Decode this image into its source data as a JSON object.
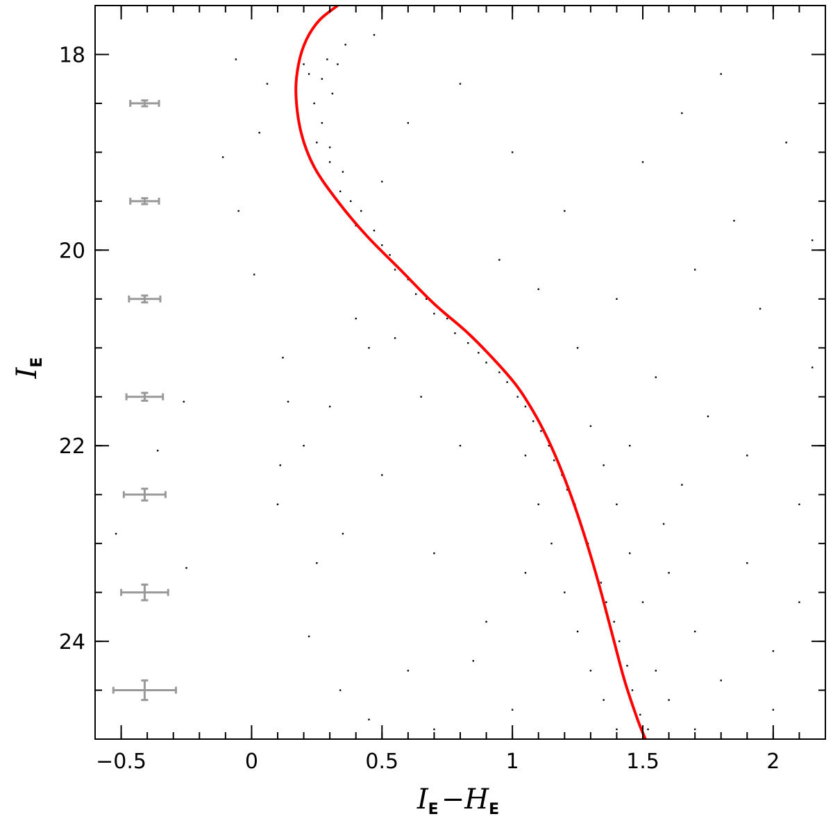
{
  "chart_data": {
    "type": "scatter",
    "title": "",
    "xlabel": {
      "main": "I",
      "sub1": "E",
      "dash": "−",
      "main2": "H",
      "sub2": "E"
    },
    "ylabel": {
      "main": "I",
      "sub": "E"
    },
    "xlim": [
      -0.6,
      2.2
    ],
    "ylim": [
      25.0,
      17.5
    ],
    "y_inverted": true,
    "x_ticks": [
      {
        "value": -0.5,
        "label": "−0.5"
      },
      {
        "value": 0,
        "label": "0"
      },
      {
        "value": 0.5,
        "label": "0.5"
      },
      {
        "value": 1,
        "label": "1"
      },
      {
        "value": 1.5,
        "label": "1.5"
      },
      {
        "value": 2,
        "label": "2"
      }
    ],
    "y_ticks": [
      {
        "value": 18,
        "label": "18"
      },
      {
        "value": 20,
        "label": "20"
      },
      {
        "value": 22,
        "label": "22"
      },
      {
        "value": 24,
        "label": "24"
      }
    ],
    "grid": false,
    "legend": "none",
    "colors": {
      "points": "#000000",
      "fiducial_line": "#ff0000",
      "error_bars": "#999999"
    },
    "fiducial_line": {
      "name": "",
      "points": [
        [
          0.33,
          17.5
        ],
        [
          0.26,
          17.65
        ],
        [
          0.21,
          17.85
        ],
        [
          0.18,
          18.1
        ],
        [
          0.17,
          18.4
        ],
        [
          0.19,
          18.8
        ],
        [
          0.24,
          19.15
        ],
        [
          0.33,
          19.5
        ],
        [
          0.44,
          19.85
        ],
        [
          0.57,
          20.2
        ],
        [
          0.7,
          20.55
        ],
        [
          0.83,
          20.85
        ],
        [
          0.94,
          21.15
        ],
        [
          1.02,
          21.4
        ],
        [
          1.08,
          21.65
        ],
        [
          1.13,
          21.9
        ],
        [
          1.18,
          22.2
        ],
        [
          1.23,
          22.55
        ],
        [
          1.28,
          22.95
        ],
        [
          1.33,
          23.4
        ],
        [
          1.38,
          23.9
        ],
        [
          1.43,
          24.4
        ],
        [
          1.48,
          24.8
        ],
        [
          1.51,
          25.0
        ]
      ]
    },
    "error_bars": [
      {
        "x": -0.41,
        "y": 18.5,
        "xerr": 0.055,
        "yerr": 0.03
      },
      {
        "x": -0.41,
        "y": 19.5,
        "xerr": 0.055,
        "yerr": 0.03
      },
      {
        "x": -0.41,
        "y": 20.5,
        "xerr": 0.06,
        "yerr": 0.035
      },
      {
        "x": -0.41,
        "y": 21.5,
        "xerr": 0.07,
        "yerr": 0.04
      },
      {
        "x": -0.41,
        "y": 22.5,
        "xerr": 0.08,
        "yerr": 0.06
      },
      {
        "x": -0.41,
        "y": 23.5,
        "xerr": 0.09,
        "yerr": 0.08
      },
      {
        "x": -0.41,
        "y": 24.5,
        "xerr": 0.12,
        "yerr": 0.1
      }
    ],
    "points": [
      [
        0.06,
        18.3
      ],
      [
        -0.06,
        18.05
      ],
      [
        0.03,
        18.8
      ],
      [
        -0.11,
        19.05
      ],
      [
        -0.05,
        19.6
      ],
      [
        0.01,
        20.25
      ],
      [
        0.12,
        21.1
      ],
      [
        0.14,
        21.55
      ],
      [
        0.11,
        22.2
      ],
      [
        0.1,
        22.6
      ],
      [
        -0.26,
        21.55
      ],
      [
        -0.36,
        22.05
      ],
      [
        -0.25,
        23.25
      ],
      [
        -0.52,
        22.9
      ],
      [
        0.22,
        23.95
      ],
      [
        0.34,
        24.5
      ],
      [
        0.29,
        18.05
      ],
      [
        0.33,
        18.1
      ],
      [
        0.36,
        17.9
      ],
      [
        0.47,
        17.8
      ],
      [
        0.27,
        18.25
      ],
      [
        0.31,
        18.4
      ],
      [
        0.22,
        18.2
      ],
      [
        0.2,
        18.1
      ],
      [
        0.24,
        18.5
      ],
      [
        0.27,
        18.7
      ],
      [
        0.25,
        18.9
      ],
      [
        0.3,
        18.95
      ],
      [
        0.3,
        19.1
      ],
      [
        0.35,
        19.2
      ],
      [
        0.34,
        19.4
      ],
      [
        0.38,
        19.5
      ],
      [
        0.42,
        19.6
      ],
      [
        0.4,
        19.75
      ],
      [
        0.47,
        19.8
      ],
      [
        0.5,
        19.95
      ],
      [
        0.53,
        20.05
      ],
      [
        0.55,
        20.2
      ],
      [
        0.6,
        20.3
      ],
      [
        0.63,
        20.45
      ],
      [
        0.67,
        20.5
      ],
      [
        0.7,
        20.65
      ],
      [
        0.75,
        20.7
      ],
      [
        0.78,
        20.85
      ],
      [
        0.83,
        20.95
      ],
      [
        0.87,
        21.05
      ],
      [
        0.9,
        21.15
      ],
      [
        0.95,
        21.25
      ],
      [
        0.98,
        21.35
      ],
      [
        1.02,
        21.5
      ],
      [
        1.05,
        21.6
      ],
      [
        1.08,
        21.75
      ],
      [
        1.11,
        21.85
      ],
      [
        1.14,
        22.0
      ],
      [
        1.16,
        22.15
      ],
      [
        1.19,
        22.3
      ],
      [
        1.21,
        22.45
      ],
      [
        1.24,
        22.6
      ],
      [
        1.26,
        22.8
      ],
      [
        1.29,
        23.0
      ],
      [
        1.31,
        23.2
      ],
      [
        1.34,
        23.4
      ],
      [
        1.36,
        23.6
      ],
      [
        1.39,
        23.8
      ],
      [
        1.41,
        24.0
      ],
      [
        1.44,
        24.25
      ],
      [
        1.46,
        24.5
      ],
      [
        1.49,
        24.75
      ],
      [
        1.52,
        24.9
      ],
      [
        1.2,
        23.5
      ],
      [
        1.25,
        23.9
      ],
      [
        1.3,
        24.3
      ],
      [
        1.35,
        24.6
      ],
      [
        1.55,
        24.3
      ],
      [
        1.6,
        24.6
      ],
      [
        1.5,
        23.6
      ],
      [
        1.45,
        23.1
      ],
      [
        1.4,
        22.6
      ],
      [
        1.35,
        22.2
      ],
      [
        1.3,
        21.8
      ],
      [
        1.1,
        22.6
      ],
      [
        1.15,
        23.0
      ],
      [
        1.05,
        22.1
      ],
      [
        1.6,
        23.3
      ],
      [
        1.7,
        23.9
      ],
      [
        1.8,
        24.4
      ],
      [
        1.9,
        23.2
      ],
      [
        2.0,
        24.1
      ],
      [
        2.1,
        22.6
      ],
      [
        2.15,
        21.2
      ],
      [
        1.95,
        20.6
      ],
      [
        1.85,
        19.7
      ],
      [
        1.7,
        20.2
      ],
      [
        1.55,
        21.3
      ],
      [
        1.4,
        20.5
      ],
      [
        1.2,
        19.6
      ],
      [
        1.0,
        19.0
      ],
      [
        0.8,
        18.3
      ],
      [
        0.6,
        18.7
      ],
      [
        0.5,
        19.3
      ],
      [
        0.4,
        20.7
      ],
      [
        0.3,
        21.6
      ],
      [
        0.5,
        22.3
      ],
      [
        0.7,
        23.1
      ],
      [
        0.9,
        23.8
      ],
      [
        0.6,
        24.3
      ],
      [
        1.0,
        24.7
      ],
      [
        0.8,
        22.0
      ],
      [
        0.95,
        20.1
      ],
      [
        1.1,
        20.4
      ],
      [
        1.25,
        21.0
      ],
      [
        1.5,
        19.1
      ],
      [
        1.65,
        18.6
      ],
      [
        1.8,
        18.2
      ],
      [
        2.05,
        18.9
      ],
      [
        2.15,
        19.9
      ],
      [
        1.75,
        21.7
      ],
      [
        1.65,
        22.4
      ],
      [
        1.9,
        22.1
      ],
      [
        2.1,
        23.6
      ],
      [
        2.0,
        24.7
      ],
      [
        1.7,
        24.9
      ],
      [
        1.4,
        24.9
      ],
      [
        1.58,
        22.8
      ],
      [
        1.45,
        22.0
      ],
      [
        0.45,
        21.0
      ],
      [
        0.35,
        22.9
      ],
      [
        0.25,
        23.2
      ],
      [
        0.2,
        22.0
      ],
      [
        0.45,
        24.8
      ],
      [
        0.7,
        24.9
      ],
      [
        0.85,
        24.2
      ],
      [
        1.05,
        23.3
      ],
      [
        0.65,
        21.5
      ],
      [
        0.55,
        20.9
      ]
    ]
  }
}
